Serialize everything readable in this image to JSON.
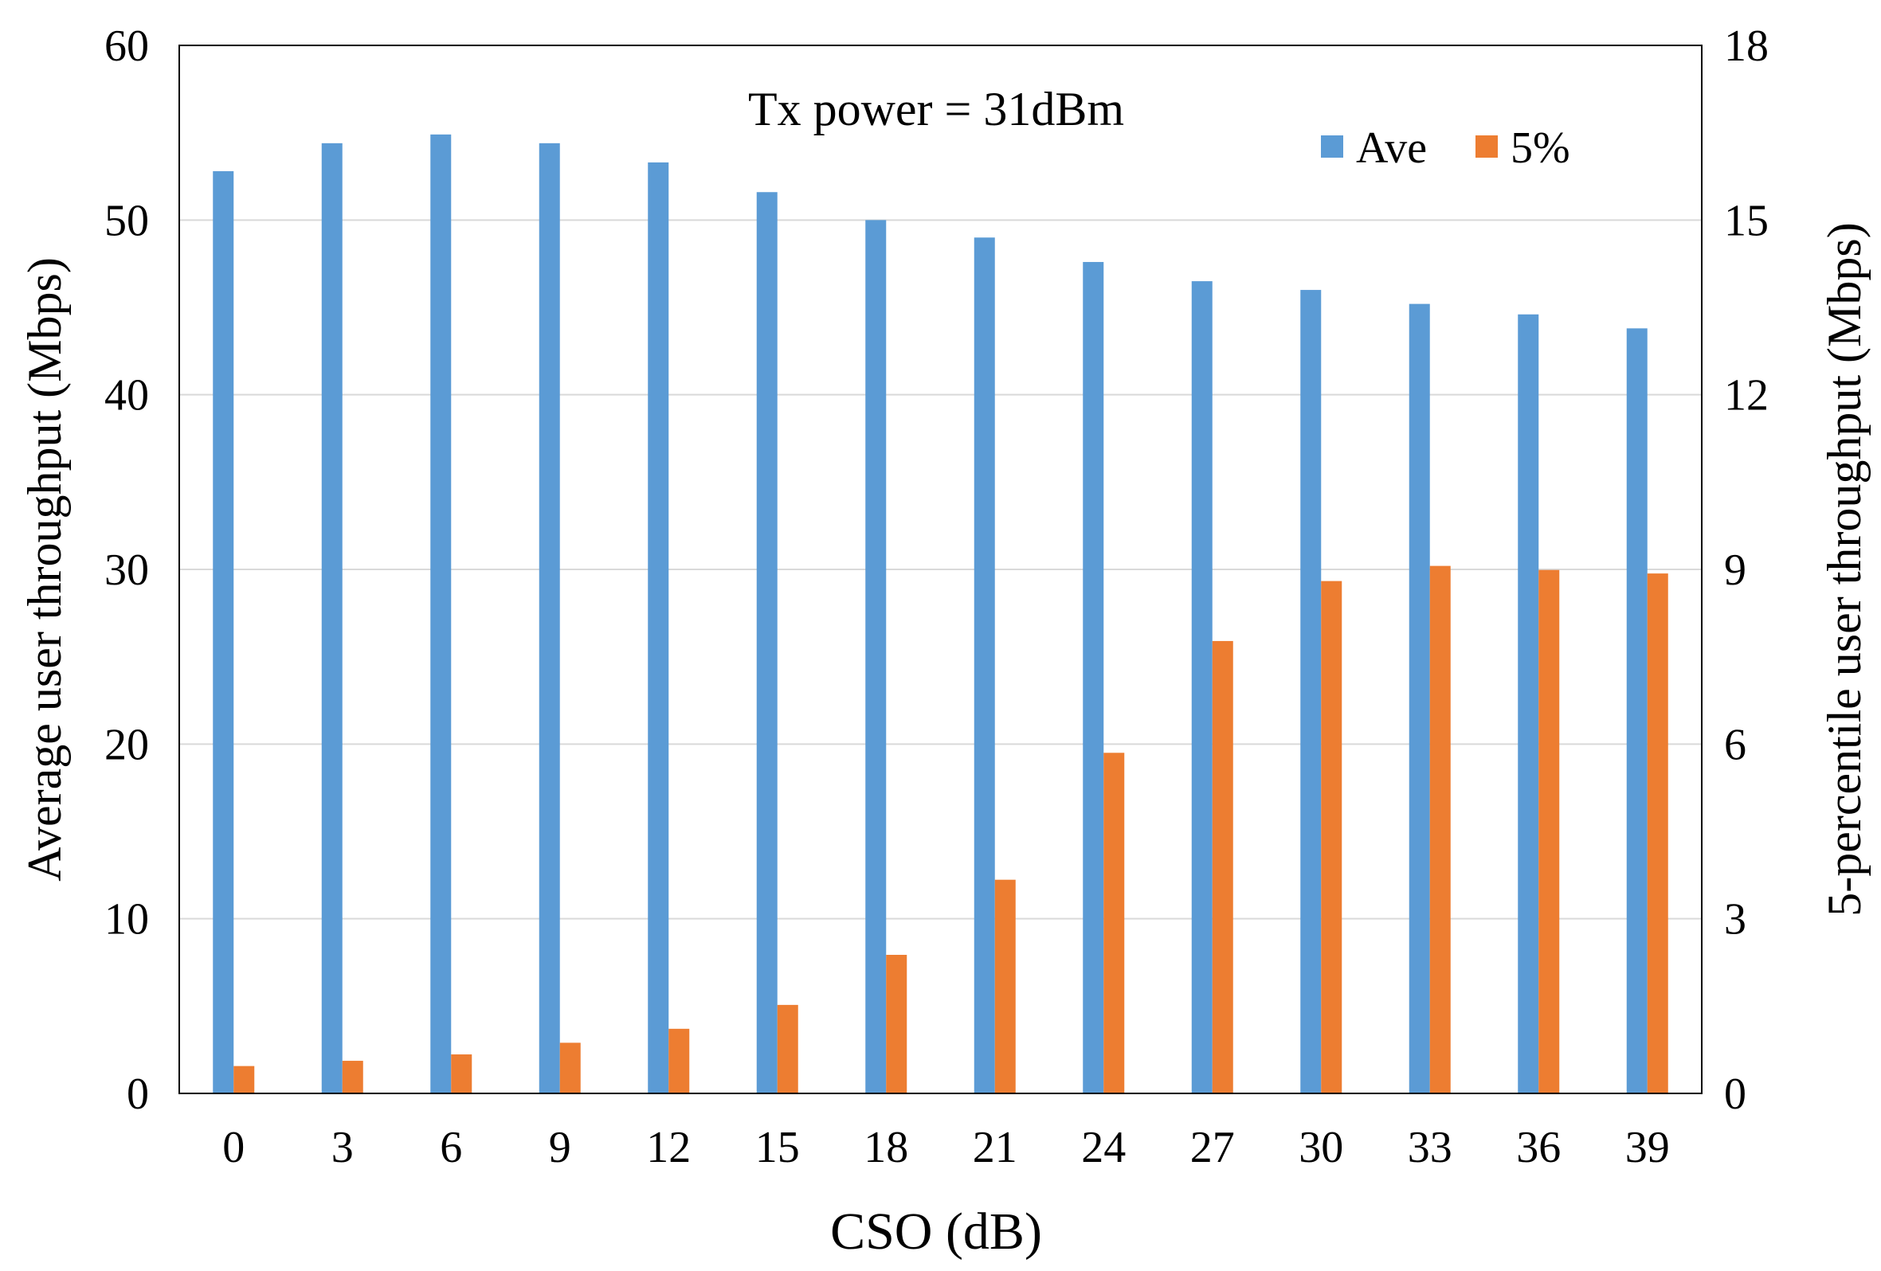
{
  "chart_data": {
    "type": "bar",
    "title": "Tx power = 31dBm",
    "xlabel": "CSO (dB)",
    "ylabel": "Average user throughput (Mbps)",
    "ylabel_right": "5-percentile user throughput (Mbps)",
    "categories": [
      "0",
      "3",
      "6",
      "9",
      "12",
      "15",
      "18",
      "21",
      "24",
      "27",
      "30",
      "33",
      "36",
      "39"
    ],
    "ylim": [
      0,
      60
    ],
    "yticks": [
      "0",
      "10",
      "20",
      "30",
      "40",
      "50",
      "60"
    ],
    "ylim_right": [
      0,
      18
    ],
    "yticks_right": [
      "0",
      "3",
      "6",
      "9",
      "12",
      "15",
      "18"
    ],
    "grid": true,
    "legend_position": "top-right",
    "series": [
      {
        "name": "Ave",
        "axis": "left",
        "color": "#5b9bd5",
        "values": [
          52.8,
          54.4,
          54.9,
          54.4,
          53.3,
          51.6,
          50.0,
          49.0,
          47.6,
          46.5,
          46.0,
          45.2,
          44.6,
          43.8
        ]
      },
      {
        "name": "5%",
        "axis": "right",
        "color": "#ed7d31",
        "values": [
          0.47,
          0.56,
          0.67,
          0.87,
          1.11,
          1.52,
          2.38,
          3.67,
          5.85,
          7.77,
          8.8,
          9.06,
          8.99,
          8.93
        ]
      }
    ]
  }
}
